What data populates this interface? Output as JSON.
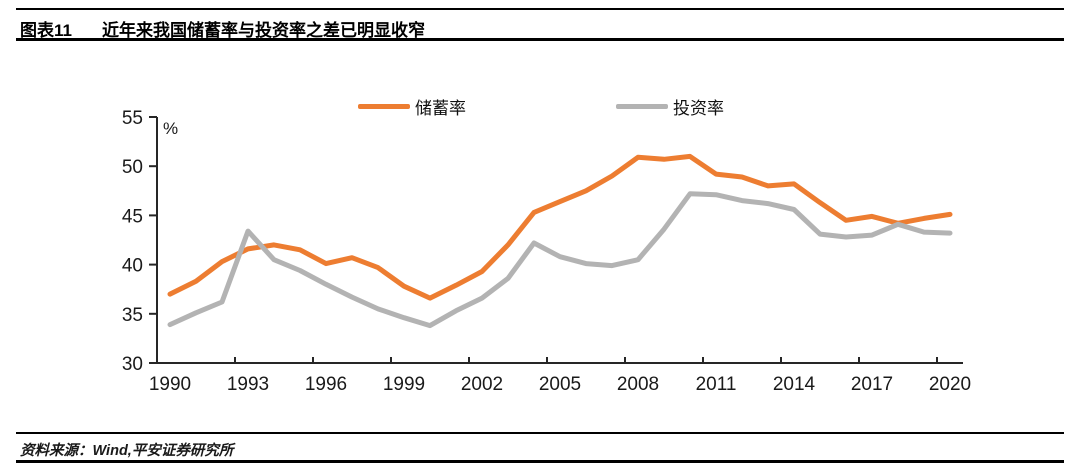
{
  "header": {
    "figure_label": "图表11",
    "title": "近年来我国储蓄率与投资率之差已明显收窄"
  },
  "footer": {
    "source": "资料来源：Wind,平安证券研究所"
  },
  "chart_data": {
    "type": "line",
    "title": "近年来我国储蓄率与投资率之差已明显收窄",
    "unit_label": "%",
    "xlabel": "",
    "ylabel": "%",
    "ylim": [
      30,
      55
    ],
    "y_ticks": [
      55,
      50,
      45,
      40,
      35,
      30
    ],
    "x": [
      1990,
      1991,
      1992,
      1993,
      1994,
      1995,
      1996,
      1997,
      1998,
      1999,
      2000,
      2001,
      2002,
      2003,
      2004,
      2005,
      2006,
      2007,
      2008,
      2009,
      2010,
      2011,
      2012,
      2013,
      2014,
      2015,
      2016,
      2017,
      2018,
      2019,
      2020
    ],
    "x_tick_labels": [
      1990,
      1993,
      1996,
      1999,
      2002,
      2005,
      2008,
      2011,
      2014,
      2017,
      2020
    ],
    "grid": false,
    "legend_position": "top",
    "axis_color": "#262626",
    "tick_label_color": "#1a1a1a",
    "series": [
      {
        "id": "savings-rate",
        "name": "储蓄率",
        "color": "#ED7D31",
        "values": [
          37.0,
          38.3,
          40.3,
          41.6,
          42.0,
          41.5,
          40.1,
          40.7,
          39.7,
          37.8,
          36.6,
          37.9,
          39.3,
          42.0,
          45.3,
          46.4,
          47.5,
          49.0,
          50.9,
          50.7,
          51.0,
          49.2,
          48.9,
          48.0,
          48.2,
          46.3,
          44.5,
          44.9,
          44.2,
          44.7,
          45.1
        ]
      },
      {
        "id": "investment-rate",
        "name": "投资率",
        "color": "#B3B3B3",
        "values": [
          33.9,
          35.1,
          36.2,
          43.4,
          40.5,
          39.4,
          38.0,
          36.7,
          35.5,
          34.6,
          33.8,
          35.3,
          36.6,
          38.6,
          42.2,
          40.8,
          40.1,
          39.9,
          40.5,
          43.6,
          47.2,
          47.1,
          46.5,
          46.2,
          45.6,
          43.1,
          42.8,
          43.0,
          44.1,
          43.3,
          43.2
        ]
      }
    ]
  }
}
